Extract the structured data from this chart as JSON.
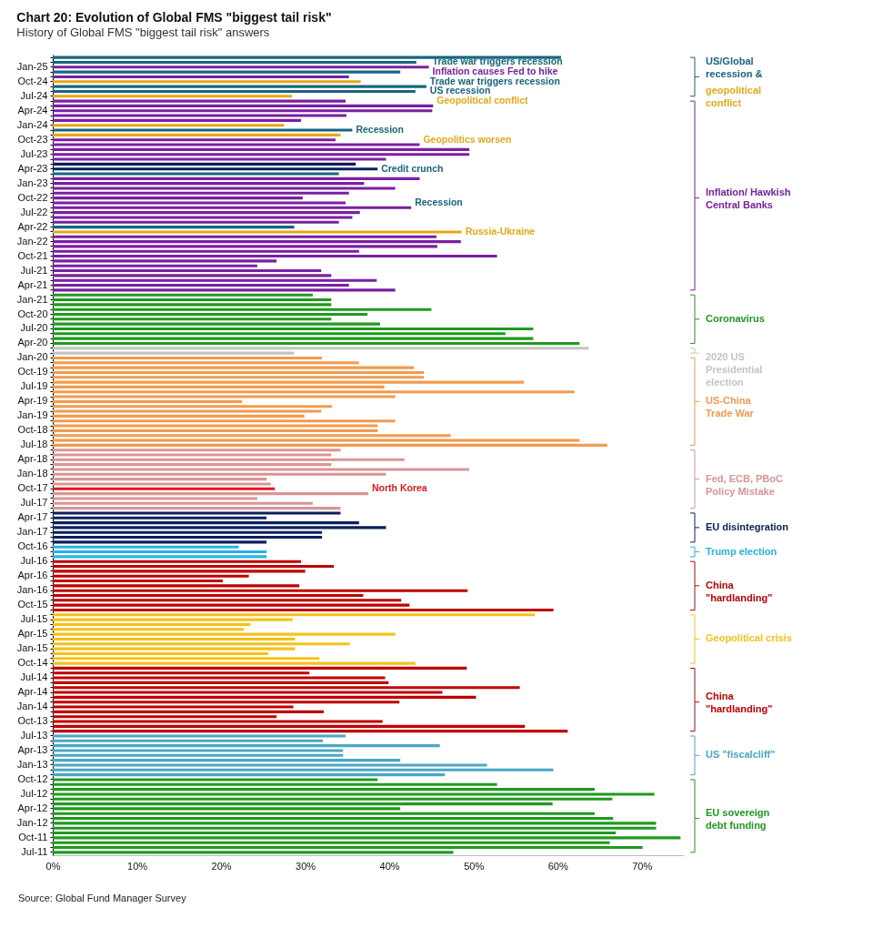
{
  "chart_data": {
    "type": "bar",
    "orientation": "horizontal",
    "title": "Chart 20: Evolution of Global FMS \"biggest tail risk\"",
    "subtitle": "History of Global FMS \"biggest tail risk\" answers",
    "categories": [
      null,
      null,
      "Jan-25",
      null,
      null,
      "Oct-24",
      null,
      null,
      "Jul-24",
      null,
      null,
      "Apr-24",
      null,
      null,
      "Jan-24",
      null,
      null,
      "Oct-23",
      null,
      null,
      "Jul-23",
      null,
      null,
      "Apr-23",
      null,
      null,
      "Jan-23",
      null,
      null,
      "Oct-22",
      null,
      null,
      "Jul-22",
      null,
      null,
      "Apr-22",
      null,
      null,
      "Jan-22",
      null,
      null,
      "Oct-21",
      null,
      null,
      "Jul-21",
      null,
      null,
      "Apr-21",
      null,
      null,
      "Jan-21",
      null,
      null,
      "Oct-20",
      null,
      null,
      "Jul-20",
      null,
      null,
      "Apr-20",
      null,
      null,
      "Jan-20",
      null,
      null,
      "Oct-19",
      null,
      null,
      "Jul-19",
      null,
      null,
      "Apr-19",
      null,
      null,
      "Jan-19",
      null,
      null,
      "Oct-18",
      null,
      null,
      "Jul-18",
      null,
      null,
      "Apr-18",
      null,
      null,
      "Jan-18",
      null,
      null,
      "Oct-17",
      null,
      null,
      "Jul-17",
      null,
      null,
      "Apr-17",
      null,
      null,
      "Jan-17",
      null,
      null,
      "Oct-16",
      null,
      null,
      "Jul-16",
      null,
      null,
      "Apr-16",
      null,
      null,
      "Jan-16",
      null,
      null,
      "Oct-15",
      null,
      null,
      "Jul-15",
      null,
      null,
      "Apr-15",
      null,
      null,
      "Jan-15",
      null,
      null,
      "Oct-14",
      null,
      null,
      "Jul-14",
      null,
      null,
      "Apr-14",
      null,
      null,
      "Jan-14",
      null,
      null,
      "Oct-13",
      null,
      null,
      "Jul-13",
      null,
      null,
      "Apr-13",
      null,
      null,
      "Jan-13",
      null,
      null,
      "Oct-12",
      null,
      null,
      "Jul-12",
      null,
      null,
      "Apr-12",
      null,
      null,
      "Jan-12",
      null,
      null,
      "Oct-11",
      null,
      null,
      "Jul-11"
    ],
    "values": [
      60.4,
      43.2,
      44.7,
      41.3,
      35.2,
      36.6,
      44.4,
      43.1,
      28.4,
      34.8,
      45.2,
      45.1,
      34.9,
      29.5,
      27.5,
      35.6,
      34.2,
      33.6,
      43.6,
      49.5,
      49.5,
      39.6,
      36.0,
      38.6,
      34.0,
      43.6,
      37.0,
      40.7,
      35.2,
      29.7,
      34.8,
      42.6,
      36.5,
      35.6,
      34.0,
      28.7,
      48.6,
      45.6,
      48.5,
      45.7,
      36.4,
      52.8,
      26.6,
      24.3,
      31.9,
      33.1,
      38.5,
      35.2,
      40.7,
      30.9,
      33.1,
      33.1,
      45.0,
      37.4,
      33.1,
      38.9,
      57.1,
      53.8,
      57.1,
      62.6,
      63.7,
      28.7,
      32.0,
      36.4,
      42.9,
      44.1,
      44.1,
      56.0,
      39.4,
      62.0,
      40.7,
      22.5,
      33.2,
      31.9,
      29.9,
      40.7,
      38.6,
      38.6,
      47.3,
      62.6,
      65.9,
      34.2,
      33.1,
      41.8,
      33.1,
      49.5,
      39.6,
      25.4,
      25.9,
      26.4,
      37.5,
      24.3,
      30.9,
      34.2,
      34.2,
      25.4,
      36.4,
      39.6,
      32.0,
      32.0,
      25.4,
      22.1,
      25.4,
      25.4,
      29.5,
      33.4,
      30.0,
      23.3,
      20.2,
      29.3,
      49.3,
      36.9,
      41.4,
      42.4,
      59.5,
      57.3,
      28.5,
      23.5,
      22.7,
      40.7,
      28.8,
      35.3,
      28.8,
      25.6,
      31.7,
      43.1,
      49.2,
      30.5,
      39.5,
      39.9,
      55.5,
      46.3,
      50.3,
      41.2,
      28.6,
      32.2,
      26.6,
      39.2,
      56.1,
      61.2,
      34.8,
      32.1,
      46.0,
      34.5,
      34.5,
      41.3,
      51.6,
      59.5,
      46.6,
      38.6,
      52.8,
      64.4,
      71.5,
      66.5,
      59.4,
      41.3,
      64.4,
      66.6,
      71.7,
      71.7,
      66.9,
      74.6,
      66.2,
      70.1,
      47.6
    ],
    "colors": [
      "#17657e",
      "#17657e",
      "#7b1fa2",
      "#17657e",
      "#7b1fa2",
      "#e6a817",
      "#17657e",
      "#17657e",
      "#e6a817",
      "#7b1fa2",
      "#7b1fa2",
      "#7b1fa2",
      "#7b1fa2",
      "#7b1fa2",
      "#e6a817",
      "#17657e",
      "#e6a817",
      "#7b1fa2",
      "#7b1fa2",
      "#7b1fa2",
      "#7b1fa2",
      "#7b1fa2",
      "#0b1f5c",
      "#0b1f5c",
      "#17657e",
      "#7b1fa2",
      "#7b1fa2",
      "#7b1fa2",
      "#7b1fa2",
      "#7b1fa2",
      "#7b1fa2",
      "#7b1fa2",
      "#7b1fa2",
      "#7b1fa2",
      "#7b1fa2",
      "#17657e",
      "#e6a817",
      "#7b1fa2",
      "#7b1fa2",
      "#7b1fa2",
      "#7b1fa2",
      "#7b1fa2",
      "#7b1fa2",
      "#7b1fa2",
      "#7b1fa2",
      "#7b1fa2",
      "#7b1fa2",
      "#7b1fa2",
      "#7b1fa2",
      "#1f9a1f",
      "#1f9a1f",
      "#1f9a1f",
      "#1f9a1f",
      "#1f9a1f",
      "#1f9a1f",
      "#1f9a1f",
      "#1f9a1f",
      "#1f9a1f",
      "#1f9a1f",
      "#1f9a1f",
      "#c4c4c4",
      "#c4c4c4",
      "#f29a4e",
      "#f29a4e",
      "#f29a4e",
      "#f29a4e",
      "#f29a4e",
      "#f29a4e",
      "#f29a4e",
      "#f29a4e",
      "#f29a4e",
      "#f29a4e",
      "#f29a4e",
      "#f29a4e",
      "#f29a4e",
      "#f29a4e",
      "#f29a4e",
      "#f29a4e",
      "#f29a4e",
      "#f29a4e",
      "#f29a4e",
      "#d99495",
      "#d99495",
      "#d99495",
      "#d99495",
      "#d99495",
      "#d99495",
      "#d99495",
      "#d99495",
      "#e3171c",
      "#d99495",
      "#d99495",
      "#d99495",
      "#d99495",
      "#0b1f5c",
      "#0b1f5c",
      "#0b1f5c",
      "#0b1f5c",
      "#0b1f5c",
      "#0b1f5c",
      "#0b1f5c",
      "#27b3e6",
      "#27b3e6",
      "#27b3e6",
      "#c00000",
      "#c00000",
      "#c00000",
      "#c00000",
      "#c00000",
      "#c00000",
      "#c00000",
      "#c00000",
      "#c00000",
      "#c00000",
      "#c00000",
      "#f6c21a",
      "#f6c21a",
      "#f6c21a",
      "#f6c21a",
      "#f6c21a",
      "#f6c21a",
      "#f6c21a",
      "#f6c21a",
      "#f6c21a",
      "#f6c21a",
      "#f6c21a",
      "#c00000",
      "#c00000",
      "#c00000",
      "#c00000",
      "#c00000",
      "#c00000",
      "#c00000",
      "#c00000",
      "#c00000",
      "#c00000",
      "#c00000",
      "#c00000",
      "#c00000",
      "#c00000",
      "#4aa7c6",
      "#4aa7c6",
      "#4aa7c6",
      "#4aa7c6",
      "#4aa7c6",
      "#4aa7c6",
      "#4aa7c6",
      "#4aa7c6",
      "#4aa7c6",
      "#1f9a1f",
      "#1f9a1f",
      "#1f9a1f",
      "#1f9a1f",
      "#1f9a1f",
      "#1f9a1f",
      "#1f9a1f",
      "#1f9a1f",
      "#1f9a1f",
      "#1f9a1f",
      "#1f9a1f",
      "#1f9a1f",
      "#1f9a1f",
      "#1f9a1f",
      "#1f9a1f",
      "#1f9a1f"
    ],
    "xlim": [
      0,
      75
    ],
    "xticks": [
      {
        "value": 0,
        "label": "0%"
      },
      {
        "value": 10,
        "label": "10%"
      },
      {
        "value": 20,
        "label": "20%"
      },
      {
        "value": 30,
        "label": "30%"
      },
      {
        "value": 40,
        "label": "40%"
      },
      {
        "value": 50,
        "label": "50%"
      },
      {
        "value": 60,
        "label": "60%"
      },
      {
        "value": 70,
        "label": "70%"
      }
    ],
    "annotations": [
      "Trade war triggers recession",
      "Inflation causes Fed to hike",
      "Trade war triggers recession",
      "US recession",
      "Geopolitical conflict",
      "Recession",
      "Geopolitics worsen",
      "Credit crunch",
      "Recession",
      "Russia-Ukraine",
      "North Korea",
      "US/Global recession &",
      "geopolitical conflict",
      "Inflation/ Hawkish Central Banks",
      "Coronavirus",
      "2020 US Presidential election",
      "US-China Trade War",
      "Fed, ECB, PBoC Policy Mistake",
      "EU disintegration",
      "Trump election",
      "China \"hardlanding\"",
      "Geopolitical crisis",
      "China \"hardlanding\"",
      "US \"fiscalcliff\"",
      "EU sovereign debt funding",
      "Source: Global Fund Manager Survey"
    ]
  }
}
